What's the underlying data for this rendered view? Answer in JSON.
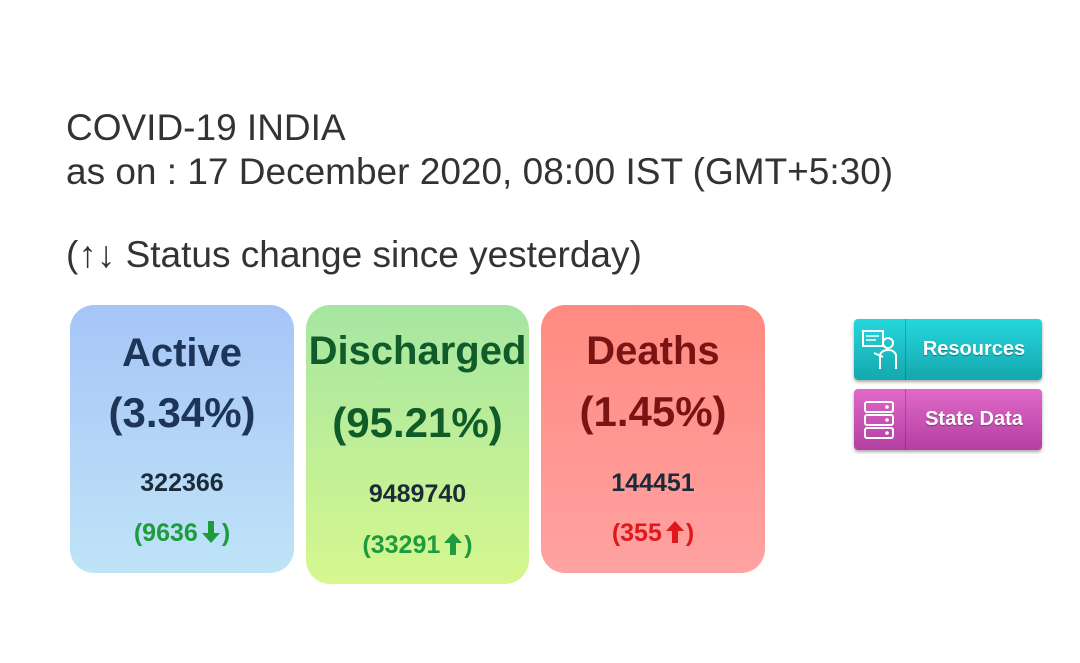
{
  "header": {
    "title": "COVID-19 INDIA",
    "as_on": "as on : 17 December 2020, 08:00 IST (GMT+5:30)",
    "status_note": "(↑↓ Status change since yesterday)"
  },
  "cards": {
    "active": {
      "label": "Active",
      "percent": "(3.34%)",
      "count": "322366",
      "change": "(9636",
      "direction": "down",
      "change_color": "#1e9b3d"
    },
    "discharged": {
      "label": "Discharged",
      "percent": "(95.21%)",
      "count": "9489740",
      "change": "(33291",
      "direction": "up",
      "change_color": "#1e9b3d"
    },
    "deaths": {
      "label": "Deaths",
      "percent": "(1.45%)",
      "count": "144451",
      "change": "(355",
      "direction": "up",
      "change_color": "#e0181b"
    }
  },
  "buttons": {
    "resources": {
      "label": "Resources",
      "icon": "presenter-icon"
    },
    "state_data": {
      "label": "State Data",
      "icon": "server-icon"
    }
  },
  "close_paren": ")"
}
